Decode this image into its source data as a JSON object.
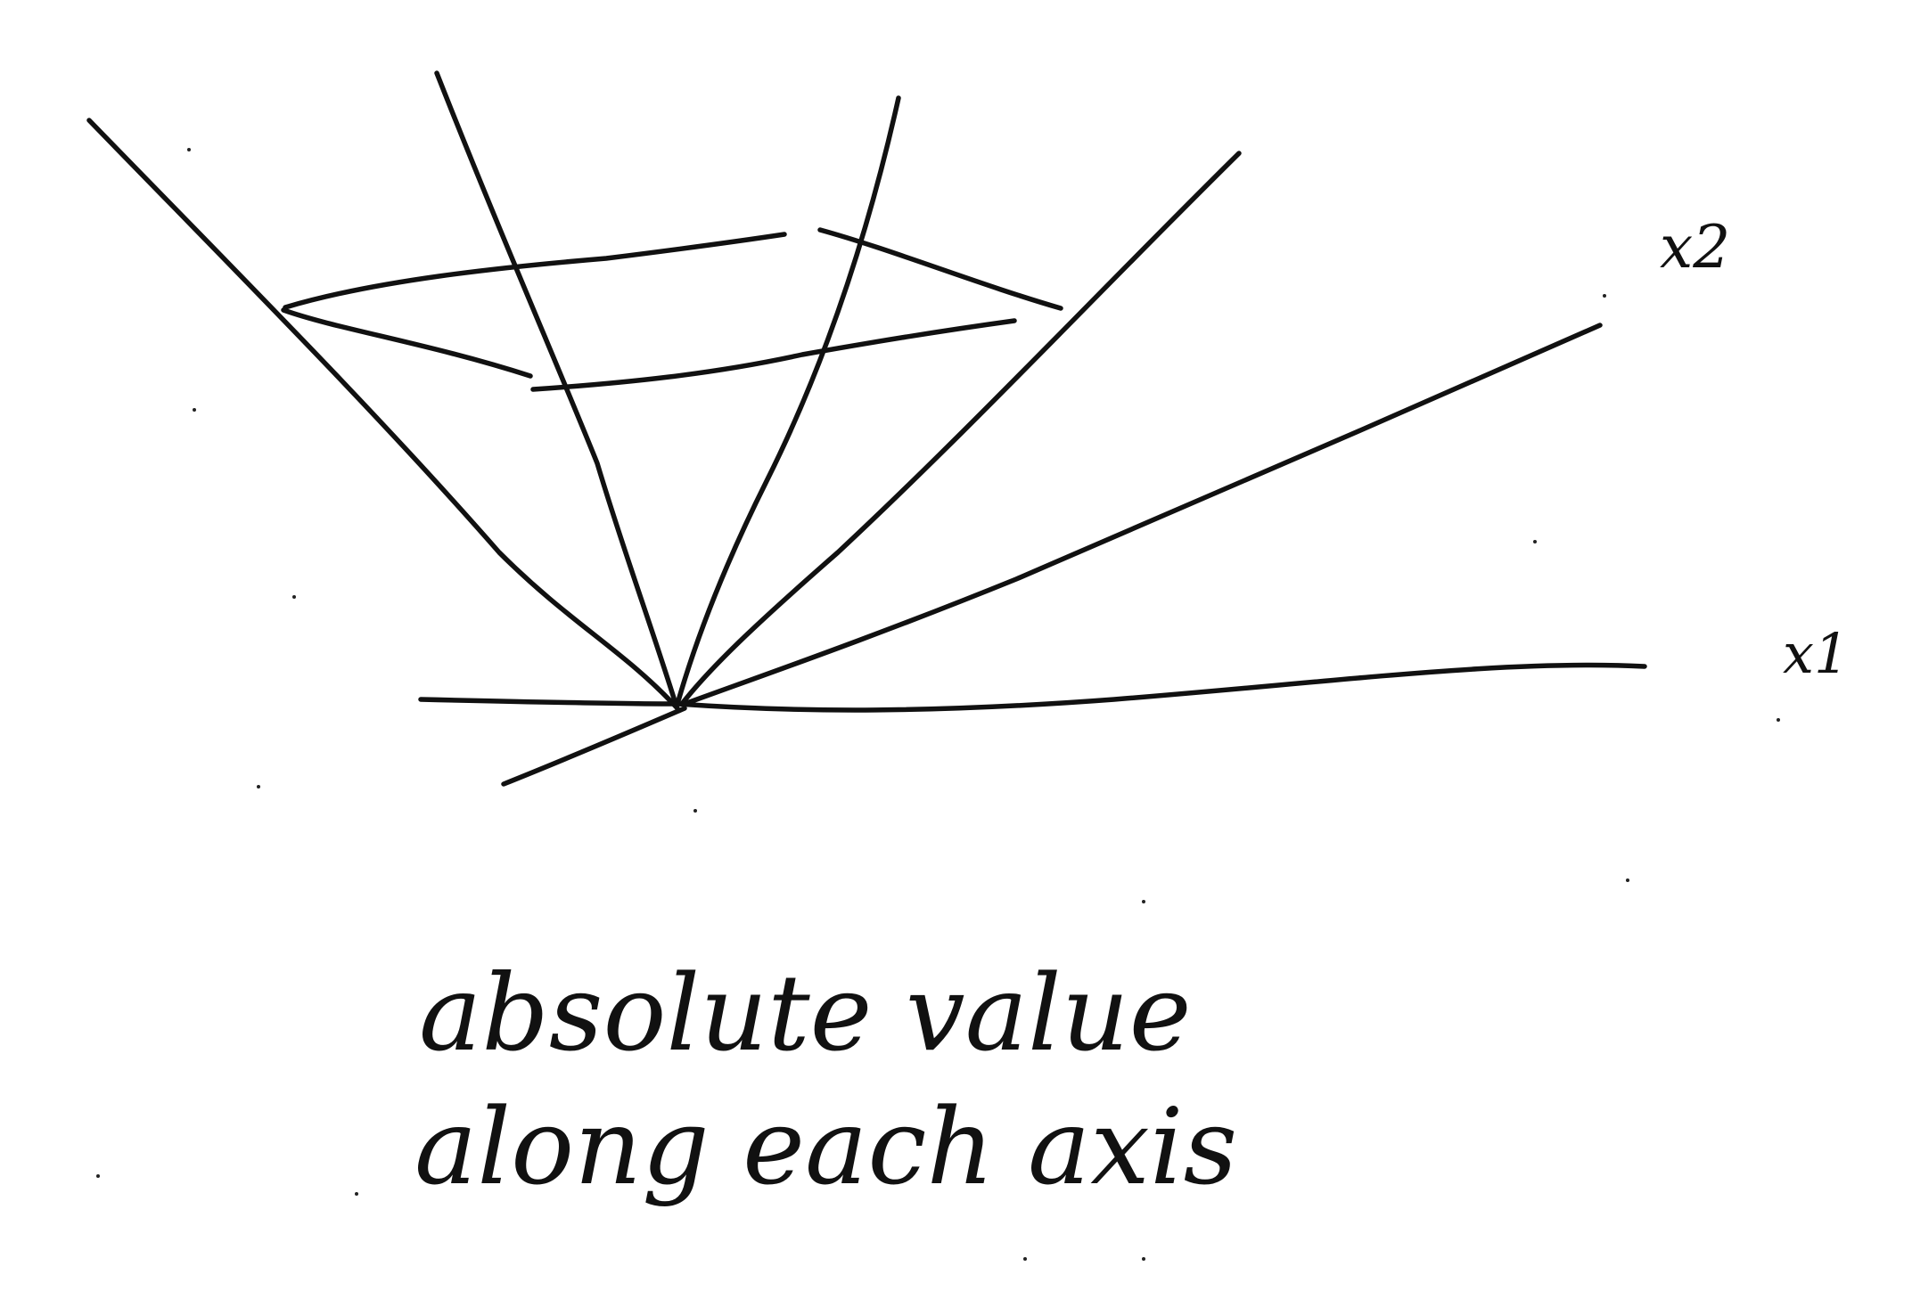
{
  "diagram": {
    "axis_labels": {
      "x2": "x2",
      "x1": "x1"
    },
    "caption": {
      "line1": "absolute value",
      "line2": "along each axis"
    },
    "ink_color": "#111111",
    "background_color": "#ffffff",
    "style": "hand-drawn sketch"
  }
}
